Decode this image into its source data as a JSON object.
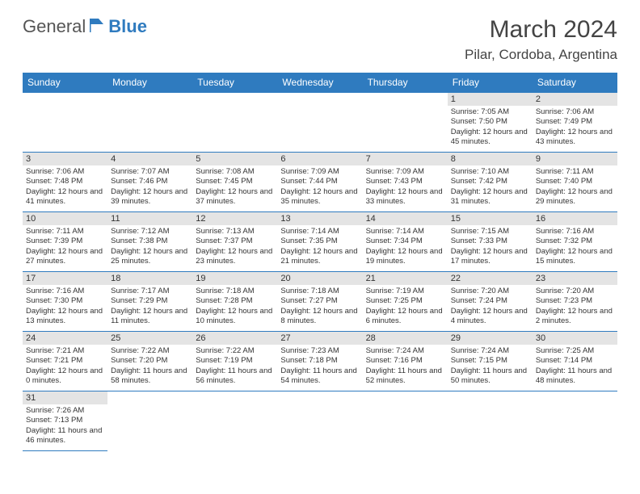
{
  "logo": {
    "part1": "General",
    "part2": "Blue"
  },
  "title": "March 2024",
  "location": "Pilar, Cordoba, Argentina",
  "colors": {
    "brand": "#2f7bbf",
    "headerRow": "#e4e4e4",
    "text": "#333333"
  },
  "weekdays": [
    "Sunday",
    "Monday",
    "Tuesday",
    "Wednesday",
    "Thursday",
    "Friday",
    "Saturday"
  ],
  "calendar": {
    "startOffset": 5,
    "days": [
      {
        "n": 1,
        "sunrise": "7:05 AM",
        "sunset": "7:50 PM",
        "dl": "12 hours and 45 minutes."
      },
      {
        "n": 2,
        "sunrise": "7:06 AM",
        "sunset": "7:49 PM",
        "dl": "12 hours and 43 minutes."
      },
      {
        "n": 3,
        "sunrise": "7:06 AM",
        "sunset": "7:48 PM",
        "dl": "12 hours and 41 minutes."
      },
      {
        "n": 4,
        "sunrise": "7:07 AM",
        "sunset": "7:46 PM",
        "dl": "12 hours and 39 minutes."
      },
      {
        "n": 5,
        "sunrise": "7:08 AM",
        "sunset": "7:45 PM",
        "dl": "12 hours and 37 minutes."
      },
      {
        "n": 6,
        "sunrise": "7:09 AM",
        "sunset": "7:44 PM",
        "dl": "12 hours and 35 minutes."
      },
      {
        "n": 7,
        "sunrise": "7:09 AM",
        "sunset": "7:43 PM",
        "dl": "12 hours and 33 minutes."
      },
      {
        "n": 8,
        "sunrise": "7:10 AM",
        "sunset": "7:42 PM",
        "dl": "12 hours and 31 minutes."
      },
      {
        "n": 9,
        "sunrise": "7:11 AM",
        "sunset": "7:40 PM",
        "dl": "12 hours and 29 minutes."
      },
      {
        "n": 10,
        "sunrise": "7:11 AM",
        "sunset": "7:39 PM",
        "dl": "12 hours and 27 minutes."
      },
      {
        "n": 11,
        "sunrise": "7:12 AM",
        "sunset": "7:38 PM",
        "dl": "12 hours and 25 minutes."
      },
      {
        "n": 12,
        "sunrise": "7:13 AM",
        "sunset": "7:37 PM",
        "dl": "12 hours and 23 minutes."
      },
      {
        "n": 13,
        "sunrise": "7:14 AM",
        "sunset": "7:35 PM",
        "dl": "12 hours and 21 minutes."
      },
      {
        "n": 14,
        "sunrise": "7:14 AM",
        "sunset": "7:34 PM",
        "dl": "12 hours and 19 minutes."
      },
      {
        "n": 15,
        "sunrise": "7:15 AM",
        "sunset": "7:33 PM",
        "dl": "12 hours and 17 minutes."
      },
      {
        "n": 16,
        "sunrise": "7:16 AM",
        "sunset": "7:32 PM",
        "dl": "12 hours and 15 minutes."
      },
      {
        "n": 17,
        "sunrise": "7:16 AM",
        "sunset": "7:30 PM",
        "dl": "12 hours and 13 minutes."
      },
      {
        "n": 18,
        "sunrise": "7:17 AM",
        "sunset": "7:29 PM",
        "dl": "12 hours and 11 minutes."
      },
      {
        "n": 19,
        "sunrise": "7:18 AM",
        "sunset": "7:28 PM",
        "dl": "12 hours and 10 minutes."
      },
      {
        "n": 20,
        "sunrise": "7:18 AM",
        "sunset": "7:27 PM",
        "dl": "12 hours and 8 minutes."
      },
      {
        "n": 21,
        "sunrise": "7:19 AM",
        "sunset": "7:25 PM",
        "dl": "12 hours and 6 minutes."
      },
      {
        "n": 22,
        "sunrise": "7:20 AM",
        "sunset": "7:24 PM",
        "dl": "12 hours and 4 minutes."
      },
      {
        "n": 23,
        "sunrise": "7:20 AM",
        "sunset": "7:23 PM",
        "dl": "12 hours and 2 minutes."
      },
      {
        "n": 24,
        "sunrise": "7:21 AM",
        "sunset": "7:21 PM",
        "dl": "12 hours and 0 minutes."
      },
      {
        "n": 25,
        "sunrise": "7:22 AM",
        "sunset": "7:20 PM",
        "dl": "11 hours and 58 minutes."
      },
      {
        "n": 26,
        "sunrise": "7:22 AM",
        "sunset": "7:19 PM",
        "dl": "11 hours and 56 minutes."
      },
      {
        "n": 27,
        "sunrise": "7:23 AM",
        "sunset": "7:18 PM",
        "dl": "11 hours and 54 minutes."
      },
      {
        "n": 28,
        "sunrise": "7:24 AM",
        "sunset": "7:16 PM",
        "dl": "11 hours and 52 minutes."
      },
      {
        "n": 29,
        "sunrise": "7:24 AM",
        "sunset": "7:15 PM",
        "dl": "11 hours and 50 minutes."
      },
      {
        "n": 30,
        "sunrise": "7:25 AM",
        "sunset": "7:14 PM",
        "dl": "11 hours and 48 minutes."
      },
      {
        "n": 31,
        "sunrise": "7:26 AM",
        "sunset": "7:13 PM",
        "dl": "11 hours and 46 minutes."
      }
    ]
  },
  "labels": {
    "sunrise": "Sunrise:",
    "sunset": "Sunset:",
    "daylight": "Daylight:"
  }
}
